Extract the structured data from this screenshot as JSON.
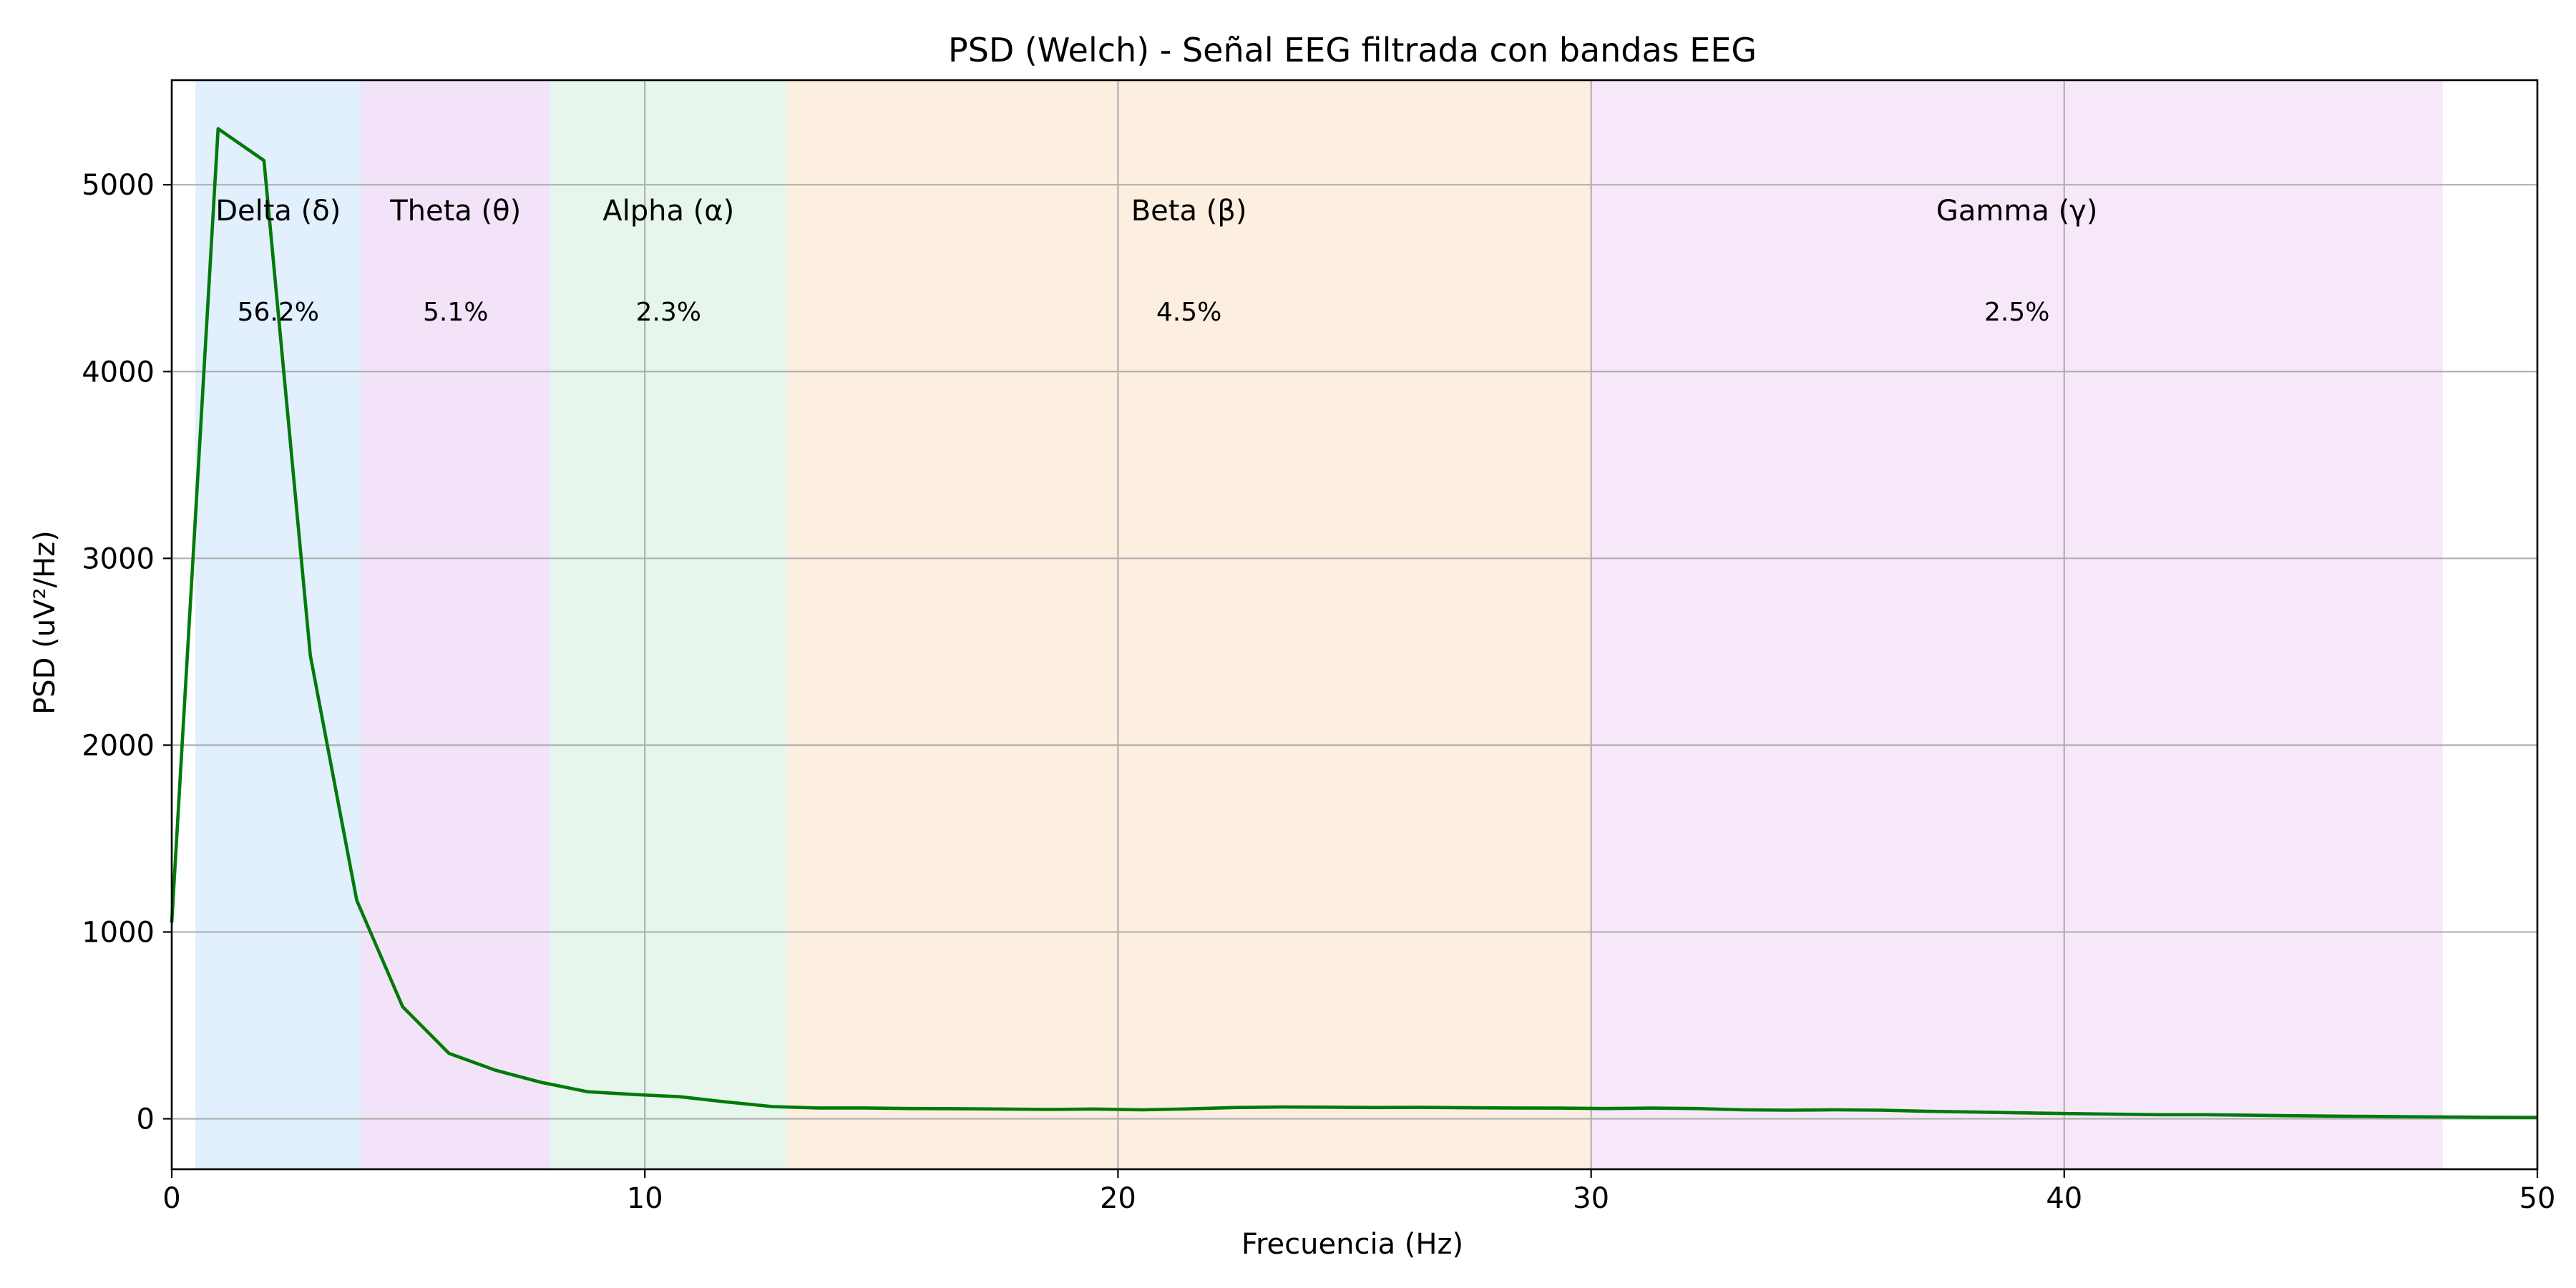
{
  "chart_data": {
    "type": "line",
    "title": "PSD (Welch) - Señal EEG filtrada con bandas EEG",
    "xlabel": "Frecuencia (Hz)",
    "ylabel": "PSD (uV²/Hz)",
    "xlim": [
      0,
      50
    ],
    "ylim": [
      -270,
      5560
    ],
    "grid": true,
    "xticks": [
      0,
      10,
      20,
      30,
      40,
      50
    ],
    "yticks": [
      0,
      1000,
      2000,
      3000,
      4000,
      5000
    ],
    "line_color": "#007a0a",
    "bands": [
      {
        "name": "Delta (δ)",
        "range": [
          0.5,
          4
        ],
        "percent": "56.2%",
        "color": "#cfe4fb"
      },
      {
        "name": "Theta (θ)",
        "range": [
          4,
          8
        ],
        "percent": "5.1%",
        "color": "#e9d1f3"
      },
      {
        "name": "Alpha (α)",
        "range": [
          8,
          13
        ],
        "percent": "2.3%",
        "color": "#d5f0df"
      },
      {
        "name": "Beta (β)",
        "range": [
          13,
          30
        ],
        "percent": "4.5%",
        "color": "#fbe5cc"
      },
      {
        "name": "Gamma (γ)",
        "range": [
          30,
          48
        ],
        "percent": "2.5%",
        "color": "#f1d9f5"
      }
    ],
    "series": [
      {
        "x": [
          0,
          0.98,
          1.95,
          2.93,
          3.91,
          4.88,
          5.86,
          6.84,
          7.81,
          8.79,
          9.77,
          10.74,
          11.72,
          12.7,
          13.67,
          14.65,
          15.63,
          16.6,
          17.58,
          18.55,
          19.53,
          20.51,
          21.48,
          22.46,
          23.44,
          24.41,
          25.39,
          26.37,
          27.34,
          28.32,
          29.3,
          30.27,
          31.25,
          32.23,
          33.2,
          34.18,
          35.16,
          36.13,
          37.11,
          38.09,
          39.06,
          40.04,
          41.02,
          41.99,
          42.97,
          43.95,
          44.92,
          45.9,
          46.88,
          47.85,
          48.83,
          50.0
        ],
        "y": [
          1050,
          5300,
          5130,
          2480,
          1170,
          600,
          350,
          260,
          195,
          145,
          130,
          118,
          90,
          65,
          58,
          58,
          55,
          54,
          52,
          50,
          52,
          48,
          53,
          60,
          63,
          62,
          60,
          61,
          59,
          58,
          57,
          55,
          57,
          55,
          48,
          46,
          48,
          46,
          40,
          36,
          32,
          28,
          25,
          22,
          22,
          19,
          16,
          14,
          12,
          10,
          8,
          7
        ]
      }
    ]
  }
}
